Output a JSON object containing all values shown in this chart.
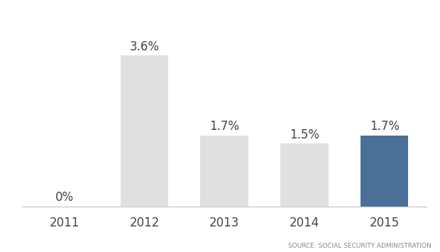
{
  "categories": [
    "2011",
    "2012",
    "2013",
    "2014",
    "2015"
  ],
  "values": [
    0.0,
    3.6,
    1.7,
    1.5,
    1.7
  ],
  "labels": [
    "0%",
    "3.6%",
    "1.7%",
    "1.5%",
    "1.7%"
  ],
  "bar_colors": [
    "#e0e0e0",
    "#e0e0e0",
    "#e0e0e0",
    "#e0e0e0",
    "#4a7098"
  ],
  "background_color": "#ffffff",
  "source_text": "SOURCE: SOCIAL SECURITY ADMINISTRATION",
  "source_fontsize": 6.5,
  "label_fontsize": 12,
  "tick_fontsize": 12,
  "ylim": [
    0,
    4.5
  ],
  "bar_width": 0.6,
  "text_color": "#444444",
  "spine_color": "#cccccc"
}
